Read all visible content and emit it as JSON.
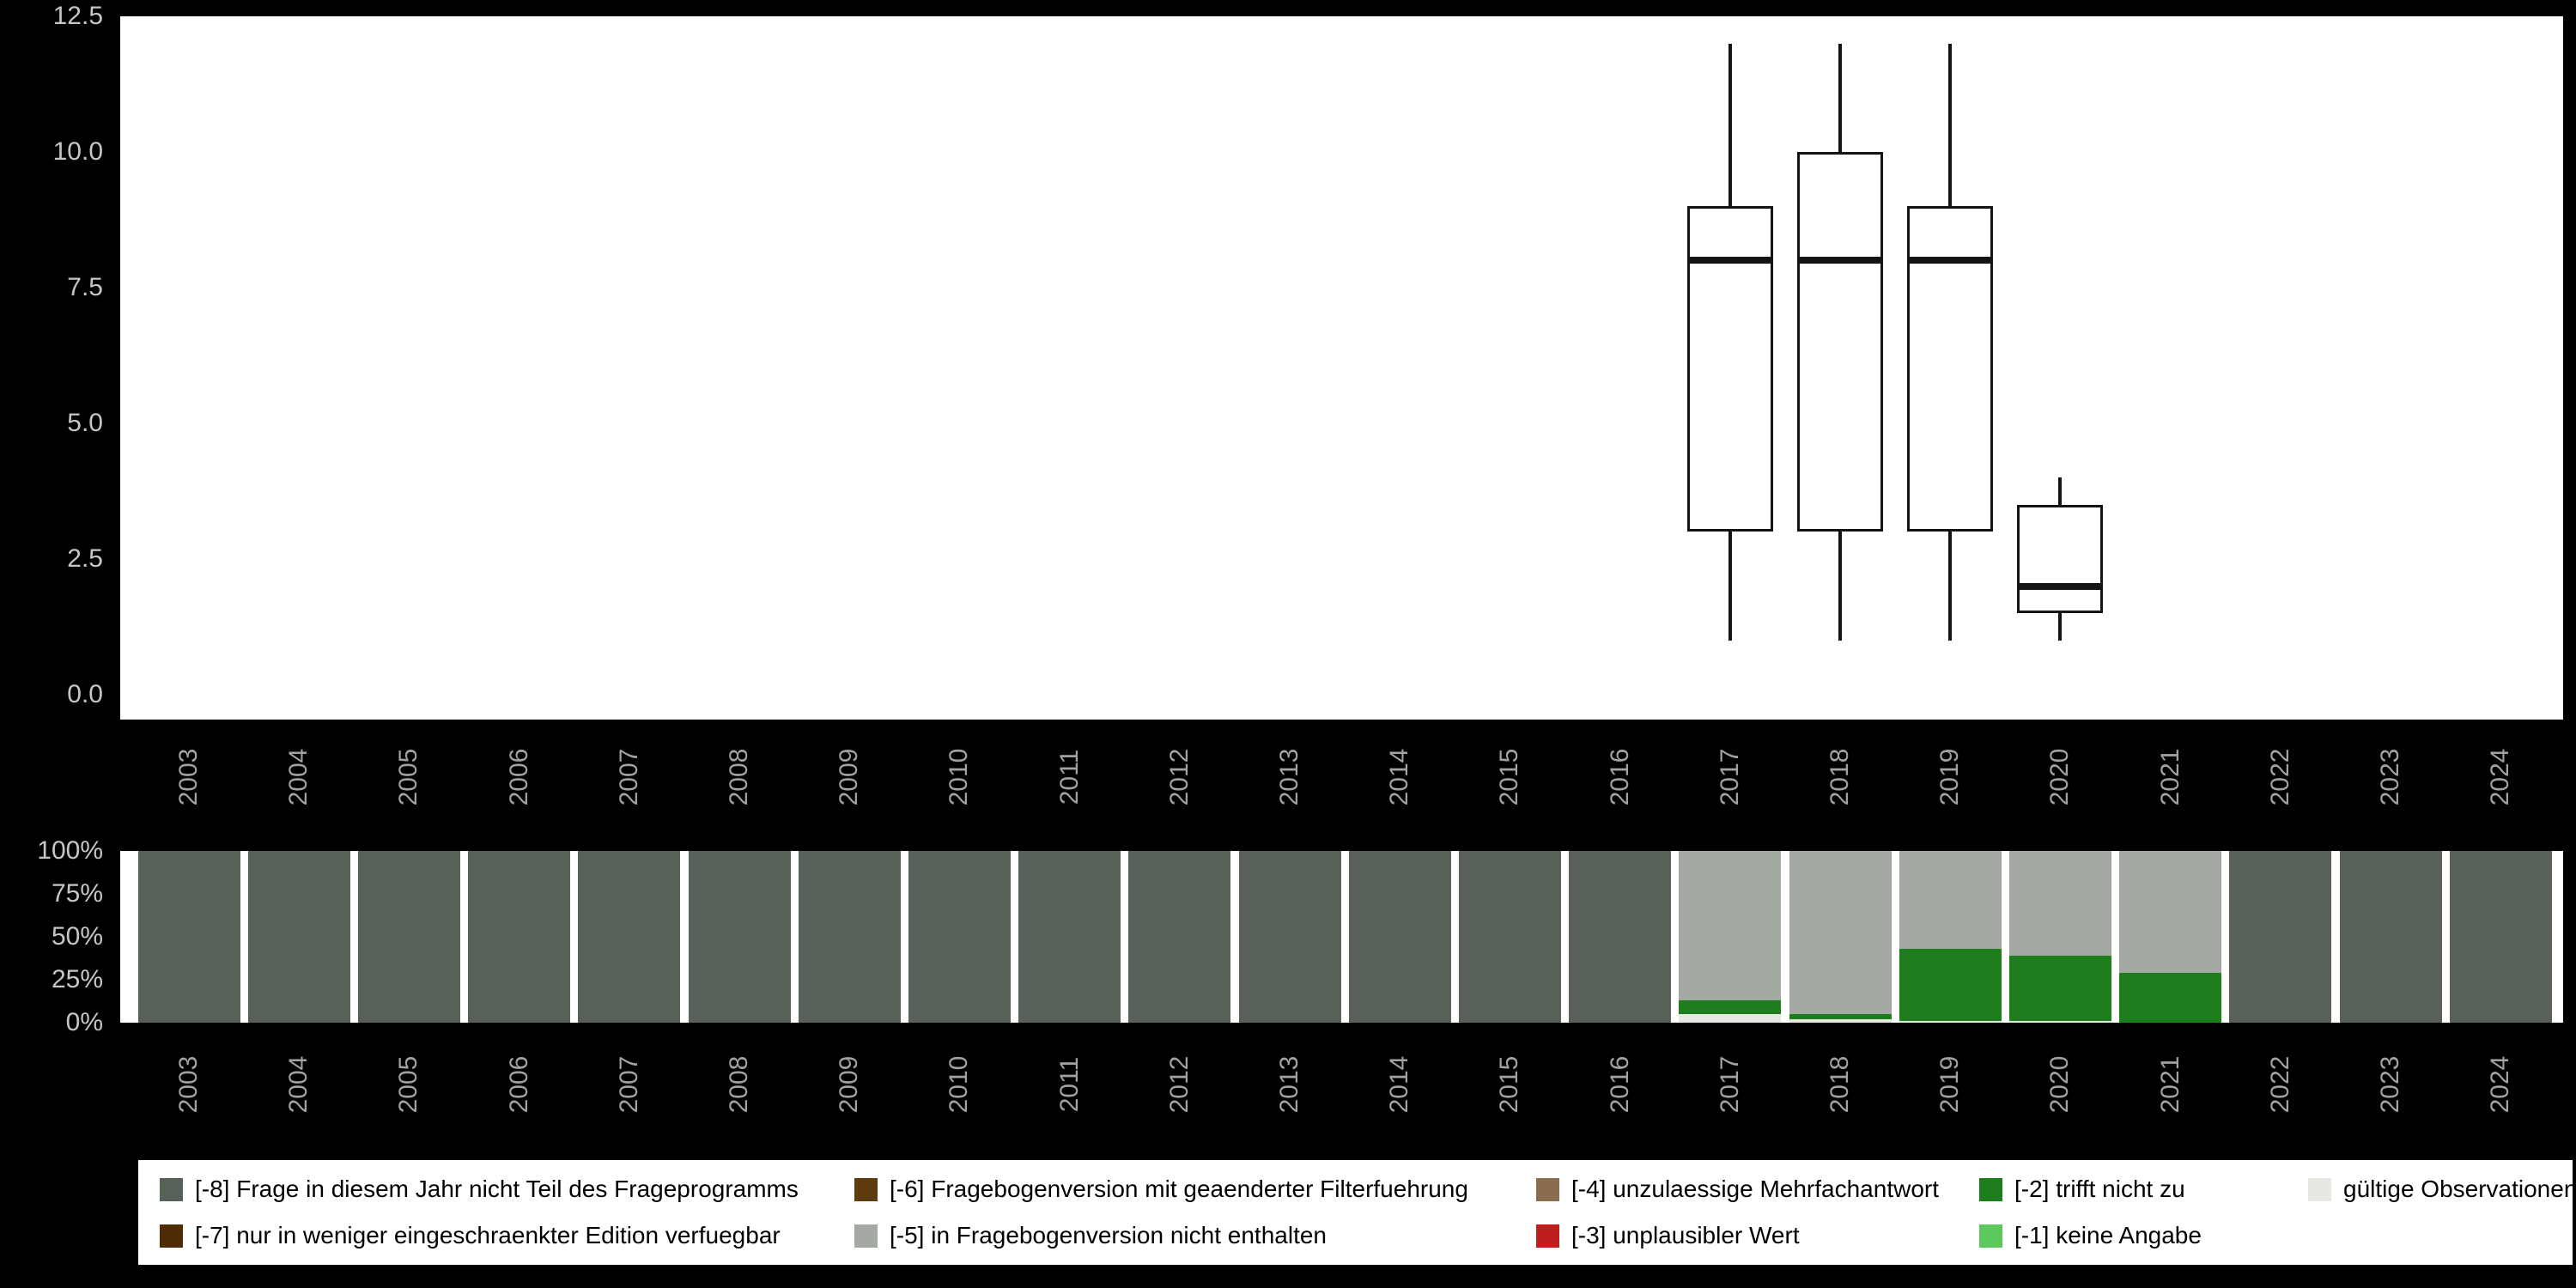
{
  "palette": {
    "-8": "#576157",
    "-7": "#4e2c07",
    "-6": "#5e3a11",
    "-5": "#a3aaa1",
    "-4": "#8a6d4f",
    "-3": "#c01d1d",
    "-2": "#1e7e1e",
    "-1": "#5dc95d",
    "valid": "#e8e8e2"
  },
  "chart_data": [
    {
      "type": "boxplot",
      "title": "",
      "xlabel": "",
      "ylabel": "",
      "categories": [
        "2003",
        "2004",
        "2005",
        "2006",
        "2007",
        "2008",
        "2009",
        "2010",
        "2011",
        "2012",
        "2013",
        "2014",
        "2015",
        "2016",
        "2017",
        "2018",
        "2019",
        "2020",
        "2021",
        "2022",
        "2023",
        "2024"
      ],
      "ylim": [
        0,
        12.5
      ],
      "grid": false,
      "yticks": [
        {
          "label": "0.0",
          "value": 0
        },
        {
          "label": "2.5",
          "value": 2.5
        },
        {
          "label": "5.0",
          "value": 5
        },
        {
          "label": "7.5",
          "value": 7.5
        },
        {
          "label": "10.0",
          "value": 10
        },
        {
          "label": "12.5",
          "value": 12.5
        }
      ],
      "boxes": [
        {
          "year": "2017",
          "whisker_low": 1,
          "q1": 3,
          "median": 8,
          "q3": 9,
          "whisker_high": 12
        },
        {
          "year": "2018",
          "whisker_low": 1,
          "q1": 3,
          "median": 8,
          "q3": 10,
          "whisker_high": 12
        },
        {
          "year": "2019",
          "whisker_low": 1,
          "q1": 3,
          "median": 8,
          "q3": 9,
          "whisker_high": 12
        },
        {
          "year": "2020",
          "whisker_low": 1,
          "q1": 1.5,
          "median": 2,
          "q3": 3.5,
          "whisker_high": 4
        }
      ]
    },
    {
      "type": "bar",
      "stacked": true,
      "unit": "percent",
      "title": "",
      "xlabel": "",
      "ylabel": "",
      "ylim": [
        0,
        100
      ],
      "categories": [
        "2003",
        "2004",
        "2005",
        "2006",
        "2007",
        "2008",
        "2009",
        "2010",
        "2011",
        "2012",
        "2013",
        "2014",
        "2015",
        "2016",
        "2017",
        "2018",
        "2019",
        "2020",
        "2021",
        "2022",
        "2023",
        "2024"
      ],
      "yticks": [
        {
          "label": "100%",
          "value": 100
        },
        {
          "label": "75%",
          "value": 75
        },
        {
          "label": "50%",
          "value": 50
        },
        {
          "label": "25%",
          "value": 25
        },
        {
          "label": "0%",
          "value": 0
        }
      ],
      "bars": [
        {
          "year": "2003",
          "segments": [
            {
              "key": "-8",
              "pct": 100
            }
          ]
        },
        {
          "year": "2004",
          "segments": [
            {
              "key": "-8",
              "pct": 100
            }
          ]
        },
        {
          "year": "2005",
          "segments": [
            {
              "key": "-8",
              "pct": 100
            }
          ]
        },
        {
          "year": "2006",
          "segments": [
            {
              "key": "-8",
              "pct": 100
            }
          ]
        },
        {
          "year": "2007",
          "segments": [
            {
              "key": "-8",
              "pct": 100
            }
          ]
        },
        {
          "year": "2008",
          "segments": [
            {
              "key": "-8",
              "pct": 100
            }
          ]
        },
        {
          "year": "2009",
          "segments": [
            {
              "key": "-8",
              "pct": 100
            }
          ]
        },
        {
          "year": "2010",
          "segments": [
            {
              "key": "-8",
              "pct": 100
            }
          ]
        },
        {
          "year": "2011",
          "segments": [
            {
              "key": "-8",
              "pct": 100
            }
          ]
        },
        {
          "year": "2012",
          "segments": [
            {
              "key": "-8",
              "pct": 100
            }
          ]
        },
        {
          "year": "2013",
          "segments": [
            {
              "key": "-8",
              "pct": 100
            }
          ]
        },
        {
          "year": "2014",
          "segments": [
            {
              "key": "-8",
              "pct": 100
            }
          ]
        },
        {
          "year": "2015",
          "segments": [
            {
              "key": "-8",
              "pct": 100
            }
          ]
        },
        {
          "year": "2016",
          "segments": [
            {
              "key": "-8",
              "pct": 100
            }
          ]
        },
        {
          "year": "2017",
          "segments": [
            {
              "key": "valid",
              "pct": 5
            },
            {
              "key": "-2",
              "pct": 8
            },
            {
              "key": "-5",
              "pct": 87
            }
          ]
        },
        {
          "year": "2018",
          "segments": [
            {
              "key": "valid",
              "pct": 2
            },
            {
              "key": "-2",
              "pct": 3
            },
            {
              "key": "-5",
              "pct": 95
            }
          ]
        },
        {
          "year": "2019",
          "segments": [
            {
              "key": "valid",
              "pct": 1
            },
            {
              "key": "-2",
              "pct": 42
            },
            {
              "key": "-5",
              "pct": 57
            }
          ]
        },
        {
          "year": "2020",
          "segments": [
            {
              "key": "valid",
              "pct": 1
            },
            {
              "key": "-2",
              "pct": 38
            },
            {
              "key": "-5",
              "pct": 61
            }
          ]
        },
        {
          "year": "2021",
          "segments": [
            {
              "key": "-2",
              "pct": 29
            },
            {
              "key": "-5",
              "pct": 71
            }
          ]
        },
        {
          "year": "2022",
          "segments": [
            {
              "key": "-8",
              "pct": 100
            }
          ]
        },
        {
          "year": "2023",
          "segments": [
            {
              "key": "-8",
              "pct": 100
            }
          ]
        },
        {
          "year": "2024",
          "segments": [
            {
              "key": "-8",
              "pct": 100
            }
          ]
        }
      ]
    }
  ],
  "legend": {
    "columns": [
      [
        {
          "key": "-8",
          "label": "[-8] Frage in diesem Jahr nicht Teil des Frageprogramms"
        },
        {
          "key": "-7",
          "label": "[-7] nur in weniger eingeschraenkter Edition verfuegbar"
        }
      ],
      [
        {
          "key": "-6",
          "label": "[-6] Fragebogenversion mit geaenderter Filterfuehrung"
        },
        {
          "key": "-5",
          "label": "[-5] in Fragebogenversion nicht enthalten"
        }
      ],
      [
        {
          "key": "-4",
          "label": "[-4] unzulaessige Mehrfachantwort"
        },
        {
          "key": "-3",
          "label": "[-3] unplausibler Wert"
        }
      ],
      [
        {
          "key": "-2",
          "label": "[-2] trifft nicht zu"
        },
        {
          "key": "-1",
          "label": "[-1] keine Angabe"
        }
      ],
      [
        {
          "key": "valid",
          "label": "gültige Observationen"
        }
      ]
    ]
  }
}
